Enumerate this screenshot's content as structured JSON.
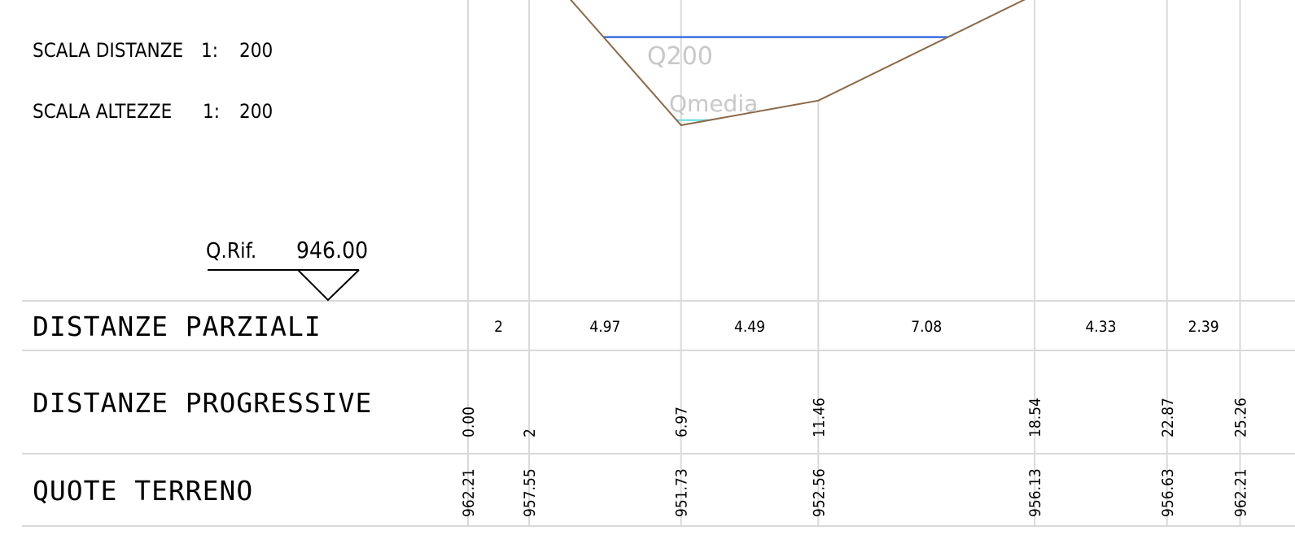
{
  "scales": {
    "distances_label": "SCALA DISTANZE",
    "distances_ratio": "1:",
    "distances_value": "200",
    "heights_label": "SCALA ALTEZZE",
    "heights_ratio": "1:",
    "heights_value": "200"
  },
  "reference": {
    "label": "Q.Rif.",
    "value": "946.00"
  },
  "rows": {
    "partial_distances": "DISTANZE PARZIALI",
    "progressive_distances": "DISTANZE PROGRESSIVE",
    "ground_elevations": "QUOTE TERRENO"
  },
  "water_levels": {
    "q200_label": "Q200",
    "qmedia_label": "Qmedia"
  },
  "colors": {
    "grid": "#d9d9d9",
    "terrain": "#8b6a48",
    "q200": "#3b6fe0",
    "qmedia": "#7ee0e6",
    "text": "#000000",
    "water_label": "#c8c8c8"
  },
  "chart_data": {
    "type": "line",
    "series": [
      {
        "name": "",
        "x": [
          0.0,
          2.0,
          6.97,
          11.46,
          18.54,
          22.87,
          25.26
        ],
        "y": [
          962.21,
          957.55,
          951.73,
          952.56,
          956.13,
          956.63,
          962.21
        ]
      }
    ],
    "stations": [
      {
        "progressive": "0.00",
        "elevation": "962.21"
      },
      {
        "progressive": "2",
        "elevation": "957.55"
      },
      {
        "progressive": "6.97",
        "elevation": "951.73"
      },
      {
        "progressive": "11.46",
        "elevation": "952.56"
      },
      {
        "progressive": "18.54",
        "elevation": "956.13"
      },
      {
        "progressive": "22.87",
        "elevation": "956.63"
      },
      {
        "progressive": "25.26",
        "elevation": "962.21"
      }
    ],
    "partials": [
      "2",
      "4.97",
      "4.49",
      "7.08",
      "4.33",
      "2.39"
    ],
    "q200_elevation": 954.7,
    "qmedia_elevation": 951.9,
    "reference_elevation": 946.0,
    "scale_distances": "1:200",
    "scale_heights": "1:200"
  }
}
